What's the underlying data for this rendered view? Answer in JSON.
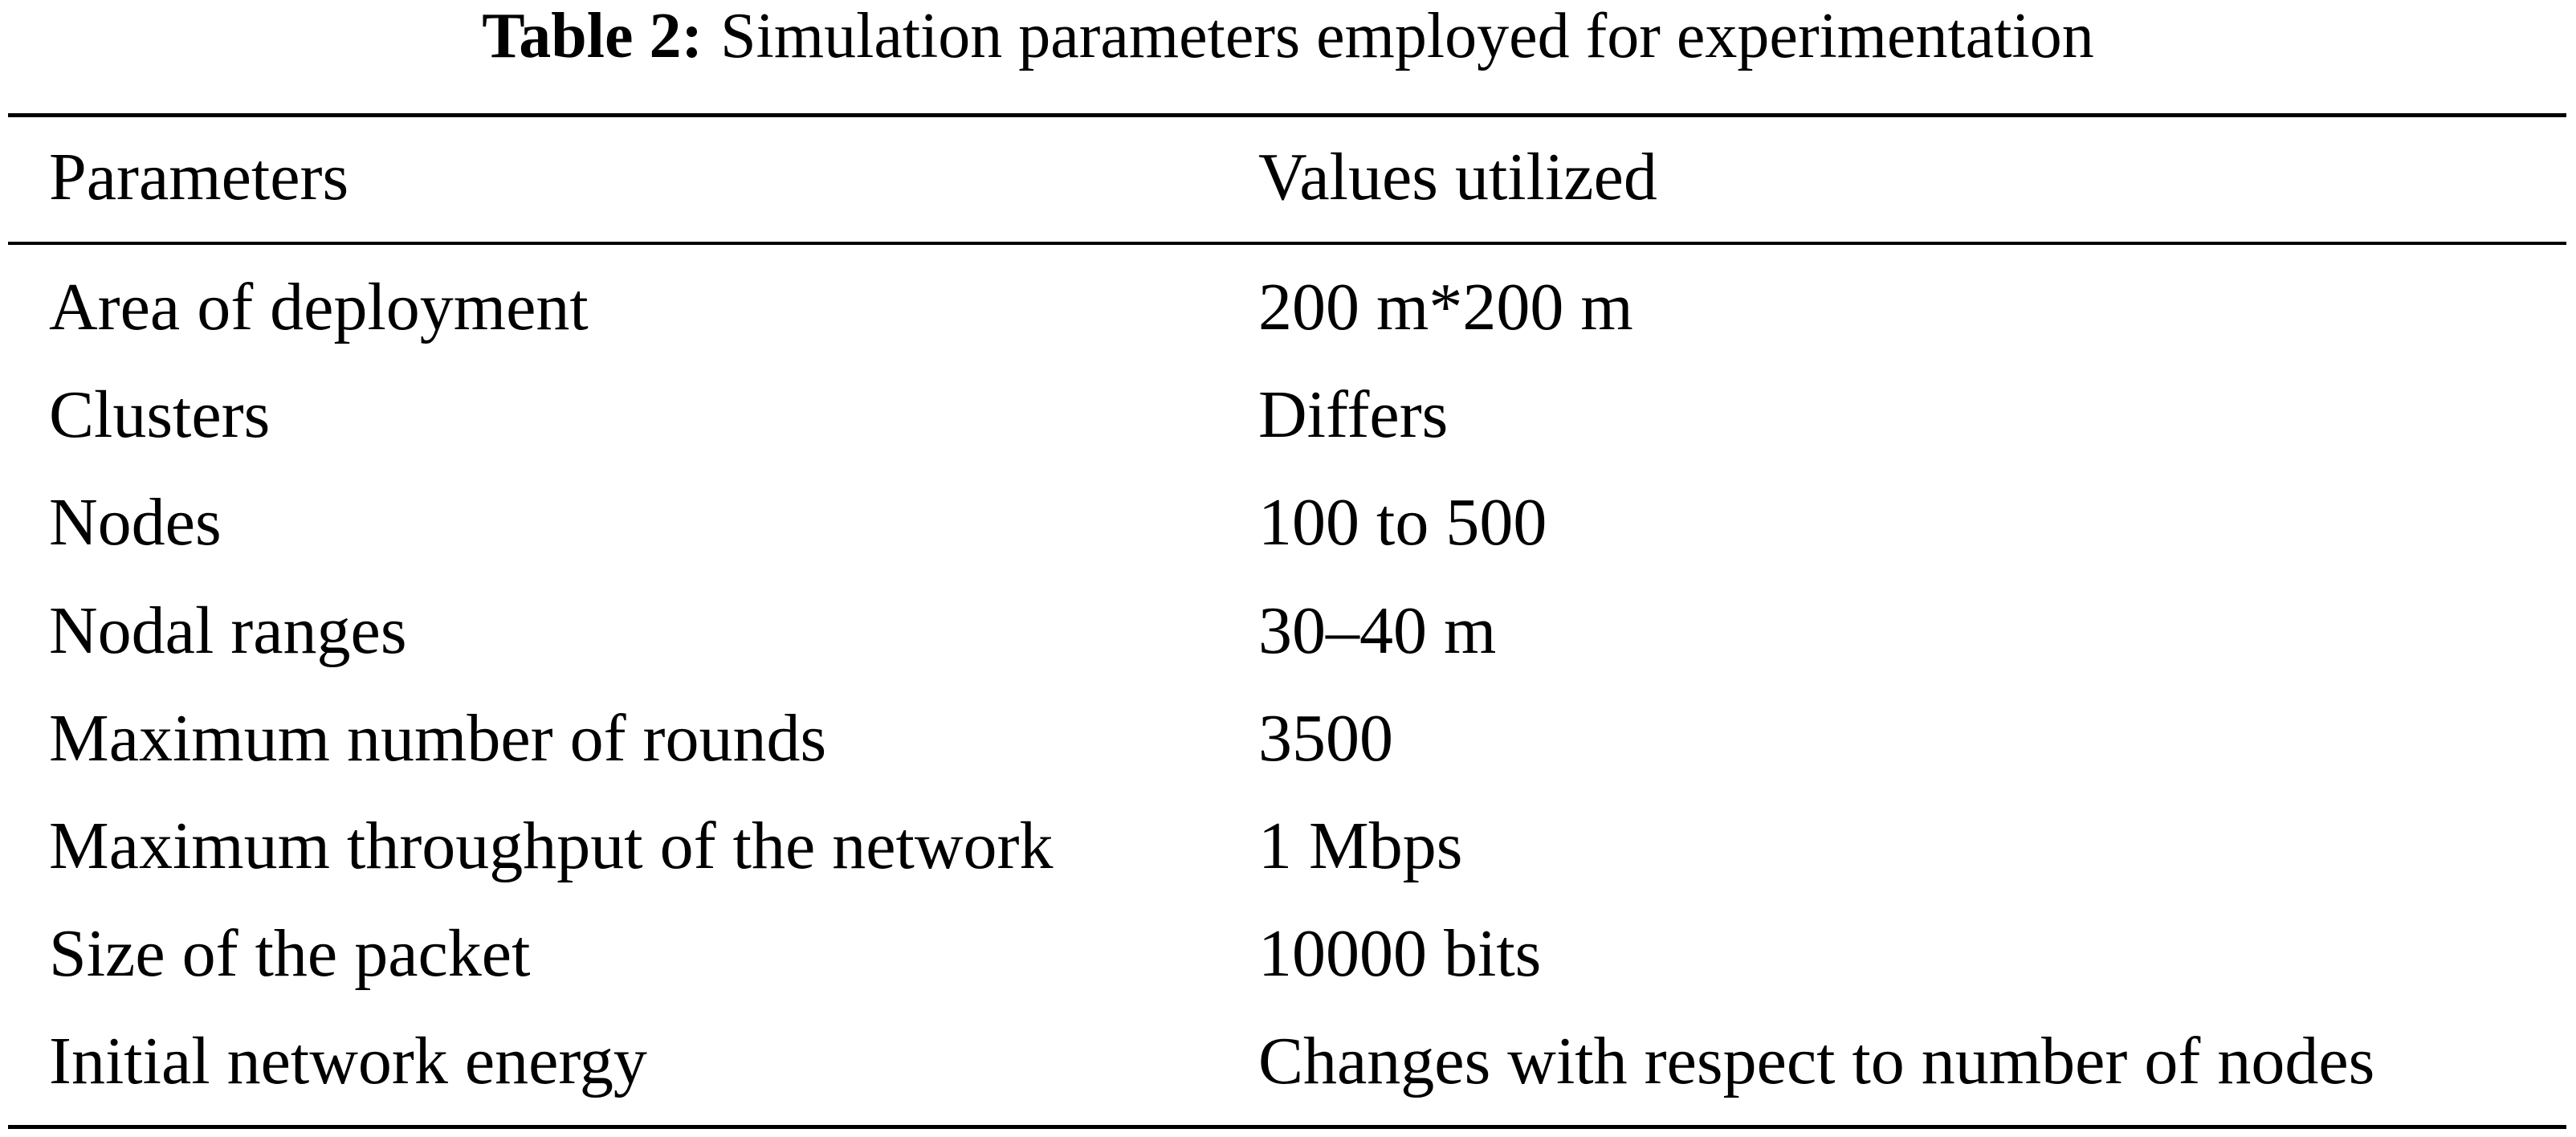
{
  "caption": {
    "label": "Table 2:",
    "text": "Simulation parameters employed for experimentation"
  },
  "table": {
    "header": [
      "Parameters",
      "Values utilized"
    ],
    "rows": [
      [
        "Area of deployment",
        "200 m*200 m"
      ],
      [
        "Clusters",
        "Differs"
      ],
      [
        "Nodes",
        "100 to 500"
      ],
      [
        "Nodal ranges",
        "30–40 m"
      ],
      [
        "Maximum number of rounds",
        "3500"
      ],
      [
        "Maximum throughput of the network",
        "1 Mbps"
      ],
      [
        "Size of the packet",
        "10000 bits"
      ],
      [
        "Initial network energy",
        "Changes with respect to number of nodes"
      ]
    ]
  }
}
